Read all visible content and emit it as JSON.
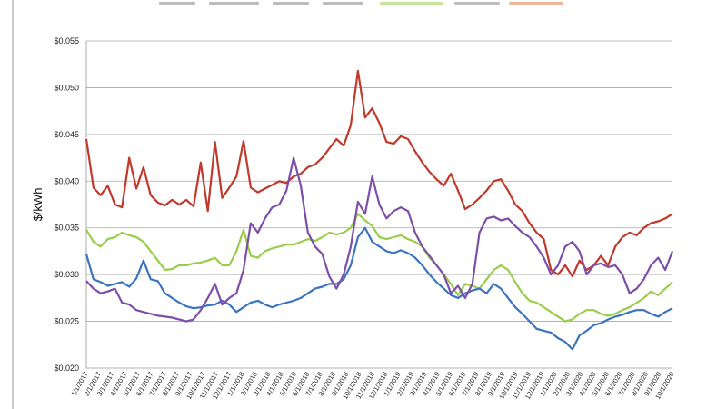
{
  "chart_data": {
    "type": "line",
    "title": "",
    "xlabel": "",
    "ylabel": "$/kWh",
    "ylim": [
      0.02,
      0.055
    ],
    "y_ticks": [
      "$0.020",
      "$0.025",
      "$0.030",
      "$0.035",
      "$0.040",
      "$0.045",
      "$0.050",
      "$0.055"
    ],
    "grid": "horizontal",
    "legend": "none",
    "x_ticks": [
      "1/1/2017",
      "2/1/2017",
      "3/1/2017",
      "4/1/2017",
      "5/1/2017",
      "6/1/2017",
      "7/1/2017",
      "8/1/2017",
      "9/1/2017",
      "10/1/2017",
      "11/1/2017",
      "12/1/2017",
      "1/1/2018",
      "2/1/2018",
      "3/1/2018",
      "4/1/2018",
      "5/1/2018",
      "6/1/2018",
      "7/1/2018",
      "8/1/2018",
      "9/1/2018",
      "10/1/2018",
      "11/1/2018",
      "12/1/2018",
      "1/1/2019",
      "2/1/2019",
      "3/1/2019",
      "4/1/2019",
      "5/1/2019",
      "6/1/2019",
      "7/1/2019",
      "8/1/2019",
      "9/1/2019",
      "10/1/2019",
      "11/1/2019",
      "12/1/2019",
      "1/1/2020",
      "2/1/2020",
      "3/1/2020",
      "4/1/2020",
      "5/1/2020",
      "6/1/2020",
      "7/1/2020",
      "8/1/2020",
      "9/1/2020",
      "10/1/2020"
    ],
    "series": [
      {
        "color": "#c0392b",
        "values": [
          0.0445,
          0.0393,
          0.0385,
          0.0395,
          0.0375,
          0.0372,
          0.0425,
          0.0392,
          0.0415,
          0.0385,
          0.0377,
          0.0374,
          0.038,
          0.0375,
          0.038,
          0.0373,
          0.042,
          0.0368,
          0.0442,
          0.0382,
          0.0393,
          0.0405,
          0.0443,
          0.0393,
          0.0388,
          0.0392,
          0.0396,
          0.04,
          0.0398,
          0.0405,
          0.0408,
          0.0415,
          0.0418,
          0.0425,
          0.0435,
          0.0445,
          0.0438,
          0.046,
          0.0518,
          0.0468,
          0.0478,
          0.0462,
          0.0442,
          0.044,
          0.0448,
          0.0445,
          0.0432,
          0.042,
          0.041,
          0.0402,
          0.0395,
          0.0408,
          0.039,
          0.037,
          0.0375,
          0.0382,
          0.039,
          0.04,
          0.0402,
          0.039,
          0.0375,
          0.0368,
          0.0355,
          0.0345,
          0.0338,
          0.0305,
          0.03,
          0.031,
          0.0298,
          0.0315,
          0.0305,
          0.031,
          0.032,
          0.031,
          0.033,
          0.034,
          0.0345,
          0.0342,
          0.035,
          0.0355,
          0.0357,
          0.036,
          0.0365
        ]
      },
      {
        "color": "#9acd4c",
        "values": [
          0.0348,
          0.0335,
          0.033,
          0.0338,
          0.034,
          0.0345,
          0.0342,
          0.034,
          0.0335,
          0.0325,
          0.0315,
          0.0305,
          0.0306,
          0.031,
          0.031,
          0.0312,
          0.0313,
          0.0315,
          0.0318,
          0.031,
          0.031,
          0.0325,
          0.0348,
          0.032,
          0.0318,
          0.0325,
          0.0328,
          0.033,
          0.0332,
          0.0332,
          0.0335,
          0.0338,
          0.0336,
          0.034,
          0.0345,
          0.0343,
          0.0345,
          0.035,
          0.0365,
          0.0358,
          0.0352,
          0.034,
          0.0338,
          0.034,
          0.0342,
          0.0338,
          0.0335,
          0.033,
          0.0318,
          0.031,
          0.03,
          0.029,
          0.0278,
          0.029,
          0.0288,
          0.0285,
          0.0295,
          0.0305,
          0.031,
          0.0305,
          0.0292,
          0.028,
          0.0272,
          0.027,
          0.0265,
          0.026,
          0.0255,
          0.025,
          0.0252,
          0.0258,
          0.0262,
          0.0262,
          0.0258,
          0.0256,
          0.0258,
          0.0262,
          0.0265,
          0.027,
          0.0275,
          0.0282,
          0.0278,
          0.0285,
          0.0292
        ]
      },
      {
        "color": "#3b74c0",
        "values": [
          0.0322,
          0.0295,
          0.0292,
          0.0288,
          0.029,
          0.0292,
          0.0287,
          0.0296,
          0.0315,
          0.0295,
          0.0293,
          0.028,
          0.0275,
          0.027,
          0.0266,
          0.0264,
          0.0265,
          0.0267,
          0.0268,
          0.0272,
          0.0268,
          0.026,
          0.0265,
          0.027,
          0.0272,
          0.0268,
          0.0265,
          0.0268,
          0.027,
          0.0272,
          0.0275,
          0.028,
          0.0285,
          0.0287,
          0.029,
          0.029,
          0.0295,
          0.031,
          0.034,
          0.035,
          0.0335,
          0.033,
          0.0325,
          0.0323,
          0.0326,
          0.0323,
          0.0318,
          0.031,
          0.03,
          0.0292,
          0.0285,
          0.0278,
          0.0275,
          0.028,
          0.0283,
          0.0285,
          0.028,
          0.029,
          0.0285,
          0.0275,
          0.0265,
          0.0258,
          0.025,
          0.0242,
          0.024,
          0.0238,
          0.0232,
          0.0228,
          0.022,
          0.0235,
          0.024,
          0.0246,
          0.0248,
          0.0252,
          0.0255,
          0.0257,
          0.026,
          0.0262,
          0.0262,
          0.0258,
          0.0255,
          0.026,
          0.0264
        ]
      },
      {
        "color": "#7d4fa8",
        "values": [
          0.0293,
          0.0285,
          0.028,
          0.0282,
          0.0285,
          0.027,
          0.0268,
          0.0262,
          0.026,
          0.0258,
          0.0256,
          0.0255,
          0.0254,
          0.0252,
          0.025,
          0.0252,
          0.0262,
          0.0275,
          0.029,
          0.0268,
          0.0275,
          0.028,
          0.0305,
          0.0355,
          0.0345,
          0.036,
          0.0372,
          0.0375,
          0.039,
          0.0425,
          0.0395,
          0.0345,
          0.033,
          0.0322,
          0.0298,
          0.0285,
          0.03,
          0.033,
          0.0378,
          0.0365,
          0.0405,
          0.0375,
          0.036,
          0.0368,
          0.0372,
          0.0368,
          0.0345,
          0.033,
          0.032,
          0.031,
          0.03,
          0.028,
          0.0288,
          0.0275,
          0.029,
          0.0345,
          0.036,
          0.0362,
          0.0358,
          0.036,
          0.0352,
          0.0345,
          0.034,
          0.033,
          0.0318,
          0.03,
          0.031,
          0.033,
          0.0335,
          0.0325,
          0.03,
          0.031,
          0.0312,
          0.0308,
          0.031,
          0.03,
          0.028,
          0.0285,
          0.0295,
          0.031,
          0.0318,
          0.0305,
          0.0325
        ]
      }
    ]
  },
  "title_marks": [
    {
      "color": "#bdbdbd"
    },
    {
      "color": "#bdbdbd"
    },
    {
      "color": "#bdbdbd"
    },
    {
      "color": "#bdbdbd"
    },
    {
      "color": "#c7e49a"
    },
    {
      "color": "#bdbdbd"
    },
    {
      "color": "#f0b69a"
    }
  ]
}
